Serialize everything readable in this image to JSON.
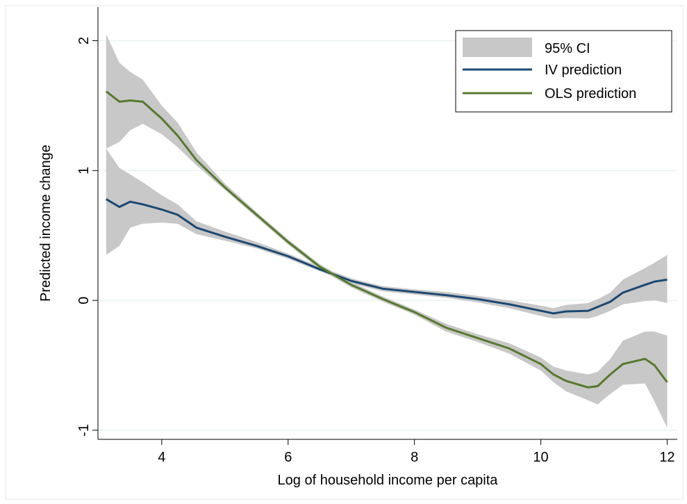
{
  "chart_data": {
    "type": "line",
    "xlabel": "Log of household income per capita",
    "ylabel": "Predicted income change",
    "x": [
      3.12,
      3.33,
      3.5,
      3.7,
      4.0,
      4.25,
      4.55,
      5,
      5.5,
      6,
      6.5,
      7,
      7.5,
      8,
      8.5,
      9,
      9.5,
      10,
      10.2,
      10.4,
      10.75,
      10.9,
      11.1,
      11.3,
      11.65,
      11.8,
      12
    ],
    "ci_label": "95% CI",
    "ci_color": "#c8c8c8",
    "series": [
      {
        "name": "IV prediction",
        "color": "#1a4872",
        "values": [
          0.78,
          0.72,
          0.76,
          0.74,
          0.7,
          0.66,
          0.56,
          0.49,
          0.42,
          0.34,
          0.24,
          0.15,
          0.09,
          0.065,
          0.04,
          0.01,
          -0.03,
          -0.08,
          -0.1,
          -0.085,
          -0.08,
          -0.05,
          -0.01,
          0.06,
          0.12,
          0.145,
          0.16
        ],
        "ci_lower": [
          0.35,
          0.42,
          0.56,
          0.59,
          0.6,
          0.59,
          0.51,
          0.46,
          0.4,
          0.32,
          0.225,
          0.13,
          0.07,
          0.045,
          0.02,
          -0.015,
          -0.06,
          -0.12,
          -0.14,
          -0.135,
          -0.14,
          -0.12,
          -0.08,
          -0.03,
          -0.005,
          0.0,
          -0.02
        ],
        "ci_upper": [
          1.17,
          1.02,
          0.97,
          0.91,
          0.81,
          0.74,
          0.61,
          0.53,
          0.45,
          0.36,
          0.26,
          0.17,
          0.11,
          0.085,
          0.065,
          0.035,
          0.0,
          -0.04,
          -0.06,
          -0.035,
          -0.02,
          0.01,
          0.06,
          0.16,
          0.25,
          0.29,
          0.35
        ]
      },
      {
        "name": "OLS prediction",
        "color": "#557a2c",
        "values": [
          1.61,
          1.53,
          1.54,
          1.53,
          1.4,
          1.27,
          1.08,
          0.87,
          0.66,
          0.45,
          0.26,
          0.12,
          0.01,
          -0.09,
          -0.21,
          -0.29,
          -0.37,
          -0.49,
          -0.57,
          -0.62,
          -0.67,
          -0.66,
          -0.57,
          -0.49,
          -0.45,
          -0.5,
          -0.63
        ],
        "ci_lower": [
          1.17,
          1.22,
          1.31,
          1.36,
          1.28,
          1.18,
          1.04,
          0.85,
          0.64,
          0.43,
          0.24,
          0.1,
          -0.01,
          -0.11,
          -0.24,
          -0.32,
          -0.41,
          -0.54,
          -0.63,
          -0.7,
          -0.77,
          -0.8,
          -0.72,
          -0.65,
          -0.64,
          -0.78,
          -0.98
        ],
        "ci_upper": [
          2.05,
          1.83,
          1.76,
          1.7,
          1.5,
          1.37,
          1.14,
          0.9,
          0.68,
          0.47,
          0.28,
          0.14,
          0.03,
          -0.07,
          -0.18,
          -0.26,
          -0.33,
          -0.44,
          -0.51,
          -0.54,
          -0.57,
          -0.55,
          -0.45,
          -0.31,
          -0.24,
          -0.24,
          -0.27
        ]
      }
    ],
    "xlim": [
      2.99,
      12.16
    ],
    "ylim": [
      -1.07,
      2.26
    ],
    "xticks": [
      4,
      6,
      8,
      10,
      12
    ],
    "yticks": [
      -1,
      0,
      1,
      2
    ],
    "grid": true,
    "legend": "top-right"
  }
}
